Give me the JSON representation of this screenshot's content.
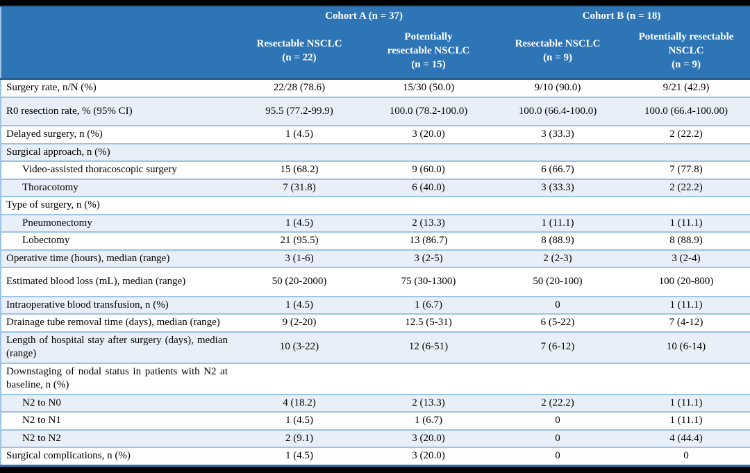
{
  "table": {
    "header": {
      "cohort_a": "Cohort A (n = 37)",
      "cohort_b": "Cohort B (n = 18)",
      "subcolumns": [
        "Resectable NSCLC\n(n = 22)",
        "Potentially\nresectable NSCLC\n(n = 15)",
        "Resectable NSCLC\n(n = 9)",
        "Potentially resectable\nNSCLC\n(n = 9)"
      ]
    },
    "rows": [
      {
        "label": "Surgery rate, n/N (%)",
        "indent": false,
        "spacious": false,
        "values": [
          "22/28 (78.6)",
          "15/30 (50.0)",
          "9/10 (90.0)",
          "9/21 (42.9)"
        ]
      },
      {
        "label": "R0 resection rate, % (95% CI)",
        "indent": false,
        "spacious": true,
        "values": [
          "95.5 (77.2-99.9)",
          "100.0 (78.2-100.0)",
          "100.0 (66.4-100.0)",
          "100.0 (66.4-100.00)"
        ]
      },
      {
        "label": "Delayed surgery, n (%)",
        "indent": false,
        "spacious": false,
        "values": [
          "1 (4.5)",
          "3 (20.0)",
          "3 (33.3)",
          "2 (22.2)"
        ]
      },
      {
        "label": "Surgical approach, n (%)",
        "indent": false,
        "spacious": false,
        "values": [
          "",
          "",
          "",
          ""
        ]
      },
      {
        "label": "Video-assisted thoracoscopic surgery",
        "indent": true,
        "spacious": false,
        "values": [
          "15 (68.2)",
          "9 (60.0)",
          "6 (66.7)",
          "7 (77.8)"
        ]
      },
      {
        "label": "Thoracotomy",
        "indent": true,
        "spacious": false,
        "values": [
          "7 (31.8)",
          "6 (40.0)",
          "3 (33.3)",
          "2 (22.2)"
        ]
      },
      {
        "label": "Type of surgery, n (%)",
        "indent": false,
        "spacious": false,
        "values": [
          "",
          "",
          "",
          ""
        ]
      },
      {
        "label": "Pneumonectomy",
        "indent": true,
        "spacious": false,
        "values": [
          "1 (4.5)",
          "2 (13.3)",
          "1 (11.1)",
          "1 (11.1)"
        ]
      },
      {
        "label": "Lobectomy",
        "indent": true,
        "spacious": false,
        "values": [
          "21 (95.5)",
          "13 (86.7)",
          "8 (88.9)",
          "8 (88.9)"
        ]
      },
      {
        "label": "Operative time (hours), median (range)",
        "indent": false,
        "spacious": false,
        "values": [
          "3 (1-6)",
          "3 (2-5)",
          "2 (2-3)",
          "3 (2-4)"
        ]
      },
      {
        "label": "Estimated blood loss (mL), median (range)",
        "indent": false,
        "spacious": true,
        "values": [
          "50 (20-2000)",
          "75 (30-1300)",
          "50 (20-100)",
          "100 (20-800)"
        ]
      },
      {
        "label": "Intraoperative blood transfusion, n (%)",
        "indent": false,
        "spacious": false,
        "values": [
          "1 (4.5)",
          "1 (6.7)",
          "0",
          "1 (11.1)"
        ]
      },
      {
        "label": "Drainage tube removal time (days), median (range)",
        "indent": false,
        "spacious": false,
        "values": [
          "9 (2-20)",
          "12.5 (5-31)",
          "6 (5-22)",
          "7 (4-12)"
        ]
      },
      {
        "label": "Length of hospital stay after surgery (days), median (range)",
        "indent": false,
        "spacious": false,
        "values": [
          "10 (3-22)",
          "12 (6-51)",
          "7 (6-12)",
          "10 (6-14)"
        ]
      },
      {
        "label": "Downstaging of nodal status in patients with N2 at baseline, n (%)",
        "indent": false,
        "spacious": false,
        "values": [
          "",
          "",
          "",
          ""
        ]
      },
      {
        "label": "N2 to N0",
        "indent": true,
        "spacious": false,
        "values": [
          "4 (18.2)",
          "2 (13.3)",
          "2 (22.2)",
          "1 (11.1)"
        ]
      },
      {
        "label": "N2 to N1",
        "indent": true,
        "spacious": false,
        "values": [
          "1 (4.5)",
          "1 (6.7)",
          "0",
          "1 (11.1)"
        ]
      },
      {
        "label": "N2 to N2",
        "indent": true,
        "spacious": false,
        "values": [
          "2 (9.1)",
          "3 (20.0)",
          "0",
          "4 (44.4)"
        ]
      },
      {
        "label": "Surgical complications, n (%)",
        "indent": false,
        "spacious": false,
        "values": [
          "1 (4.5)",
          "3 (20.0)",
          "0",
          "0"
        ]
      }
    ],
    "colors": {
      "header_background": "#2E75B6",
      "header_text": "#FFFFFF",
      "header_border": "#255E91",
      "row_separator": "#9CC3E5",
      "zebra_row_background": "#E9EFF8",
      "body_text": "#000000",
      "page_background": "#000000"
    }
  }
}
